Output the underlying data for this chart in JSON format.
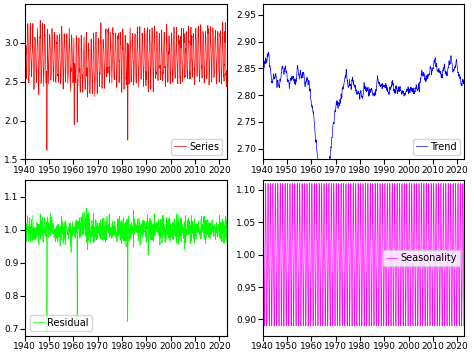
{
  "start_year": 1940,
  "end_year": 2023,
  "n_points": 996,
  "seasonal_period": 12,
  "series_color": "red",
  "trend_color": "blue",
  "residual_color": "lime",
  "seasonality_color": "magenta",
  "series_label": "Series",
  "trend_label": "Trend",
  "residual_label": "Residual",
  "seasonality_label": "Seasonality",
  "series_ylim": [
    1.5,
    3.5
  ],
  "trend_ylim": [
    2.68,
    2.97
  ],
  "residual_ylim": [
    0.68,
    1.15
  ],
  "seasonality_ylim": [
    0.875,
    1.115
  ],
  "series_yticks": [
    1.5,
    2.0,
    2.5,
    3.0
  ],
  "trend_yticks": [
    2.7,
    2.75,
    2.8,
    2.85,
    2.9,
    2.95
  ],
  "residual_yticks": [
    0.7,
    0.8,
    0.9,
    1.0,
    1.1
  ],
  "seasonality_yticks": [
    0.9,
    0.95,
    1.0,
    1.05,
    1.1
  ],
  "linewidth": 0.5,
  "legend_fontsize": 7,
  "tick_fontsize": 6.5,
  "figsize": [
    4.74,
    3.55
  ],
  "dpi": 100
}
